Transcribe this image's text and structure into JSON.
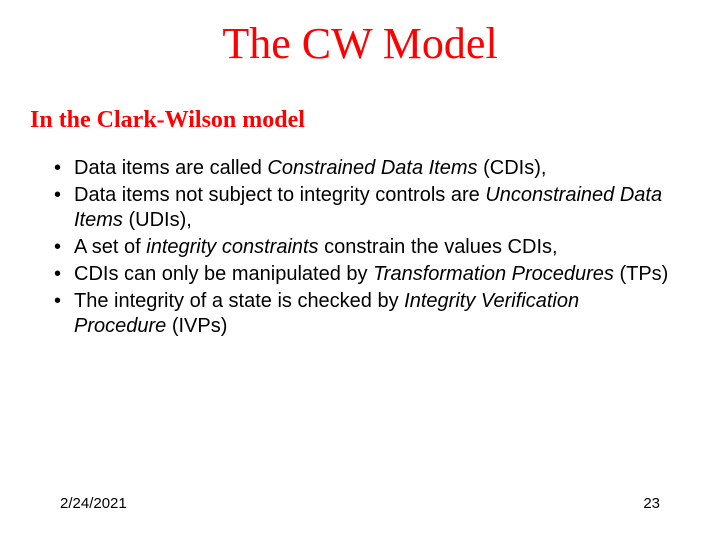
{
  "title": "The CW Model",
  "subtitle": "In the Clark-Wilson model",
  "bullets": [
    {
      "pre": "Data items are called ",
      "em": "Constrained Data Items",
      "post": " (CDIs),"
    },
    {
      "pre": "Data items not subject to integrity controls are ",
      "em": "Unconstrained Data Items",
      "post": " (UDIs),"
    },
    {
      "pre": "A set of ",
      "em": "integrity constraints",
      "post": " constrain the values CDIs,"
    },
    {
      "pre": "CDIs can only be manipulated by ",
      "em": "Transformation Procedures",
      "post": " (TPs)"
    },
    {
      "pre": "The integrity of a state is checked by ",
      "em": "Integrity Verification Procedure",
      "post": " (IVPs)"
    }
  ],
  "footer": {
    "date": "2/24/2021",
    "page": "23"
  },
  "colors": {
    "accent": "#ff0000",
    "text": "#000000",
    "background": "#ffffff"
  }
}
